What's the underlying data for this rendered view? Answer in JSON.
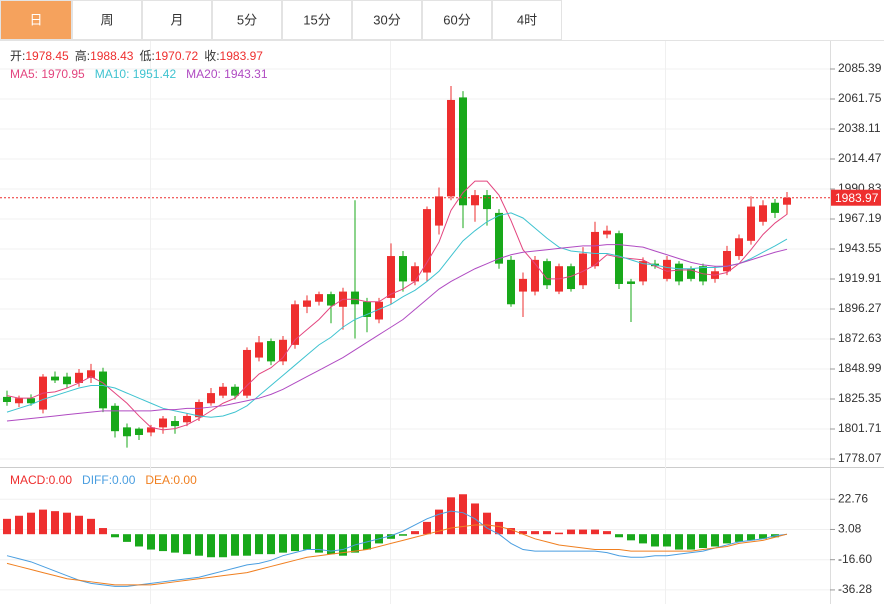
{
  "tabs": [
    "日",
    "周",
    "月",
    "5分",
    "15分",
    "30分",
    "60分",
    "4时"
  ],
  "active_tab": 0,
  "chart_data": [
    {
      "type": "candlestick",
      "ohlc_legend": [
        {
          "label": "开:",
          "value": 1978.45
        },
        {
          "label": "高:",
          "value": 1988.43
        },
        {
          "label": "低:",
          "value": 1970.72
        },
        {
          "label": "收:",
          "value": 1983.97
        }
      ],
      "ma_legend": [
        {
          "label": "MA5: ",
          "value": 1970.95,
          "color": "#e3457f"
        },
        {
          "label": "MA10: ",
          "value": 1951.42,
          "color": "#3fc3d0"
        },
        {
          "label": "MA20: ",
          "value": 1943.31,
          "color": "#b04bc2"
        }
      ],
      "up_color": "#ee2f2f",
      "down_color": "#18a81a",
      "open": [
        1827,
        1822,
        1826,
        1817,
        1843,
        1843,
        1838,
        1842,
        1847,
        1820,
        1803,
        1802,
        1799,
        1803,
        1808,
        1807,
        1811,
        1822,
        1828,
        1835,
        1828,
        1858,
        1871,
        1855,
        1868,
        1898,
        1902,
        1908,
        1898,
        1910,
        1902,
        1888,
        1905,
        1938,
        1918,
        1925,
        1962,
        1985,
        2063,
        1978,
        1986,
        1972,
        1935,
        1910,
        1910,
        1934,
        1910,
        1930,
        1915,
        1930,
        1955,
        1956,
        1918,
        1918,
        1932,
        1920,
        1932,
        1928,
        1930,
        1920,
        1926,
        1938,
        1950,
        1965,
        1980,
        1978.45
      ],
      "high": [
        1832,
        1828,
        1829,
        1845,
        1847,
        1846,
        1849,
        1853,
        1850,
        1822,
        1806,
        1803,
        1805,
        1812,
        1812,
        1814,
        1825,
        1834,
        1838,
        1837,
        1866,
        1875,
        1873,
        1875,
        1903,
        1907,
        1910,
        1910,
        1913,
        1982,
        1905,
        1905,
        1948,
        1942,
        1933,
        1977,
        1992,
        2072,
        2068,
        1990,
        1990,
        1975,
        1938,
        1925,
        1938,
        1936,
        1932,
        1932,
        1945,
        1965,
        1962,
        1958,
        1920,
        1937,
        1935,
        1938,
        1934,
        1930,
        1932,
        1930,
        1946,
        1955,
        1985,
        1982,
        1983,
        1988.43
      ],
      "low": [
        1820,
        1819,
        1820,
        1814,
        1838,
        1834,
        1835,
        1838,
        1815,
        1795,
        1787,
        1793,
        1796,
        1798,
        1798,
        1804,
        1808,
        1820,
        1826,
        1825,
        1826,
        1855,
        1852,
        1852,
        1865,
        1893,
        1899,
        1885,
        1880,
        1873,
        1878,
        1885,
        1900,
        1910,
        1915,
        1918,
        1955,
        1982,
        1960,
        1965,
        1962,
        1928,
        1898,
        1890,
        1907,
        1912,
        1908,
        1910,
        1912,
        1928,
        1952,
        1912,
        1886,
        1915,
        1928,
        1918,
        1915,
        1918,
        1915,
        1917,
        1923,
        1935,
        1947,
        1962,
        1968,
        1970.72
      ],
      "close": [
        1823,
        1826,
        1822,
        1843,
        1840,
        1837,
        1846,
        1848,
        1818,
        1800,
        1796,
        1797,
        1803,
        1810,
        1804,
        1812,
        1823,
        1830,
        1835,
        1828,
        1864,
        1870,
        1855,
        1872,
        1900,
        1903,
        1908,
        1899,
        1910,
        1900,
        1890,
        1902,
        1938,
        1918,
        1930,
        1975,
        1985,
        2061,
        1978,
        1986,
        1975,
        1932,
        1900,
        1920,
        1935,
        1915,
        1930,
        1912,
        1940,
        1957,
        1958,
        1916,
        1916,
        1934,
        1930,
        1935,
        1918,
        1920,
        1918,
        1926,
        1942,
        1952,
        1977,
        1978,
        1972,
        1983.97
      ],
      "series": [
        {
          "name": "MA5",
          "color": "#e3457f",
          "values": [
            1828,
            1826,
            1826,
            1830,
            1831,
            1834,
            1838,
            1843,
            1838,
            1830,
            1822,
            1812,
            1803,
            1801,
            1802,
            1805,
            1810,
            1816,
            1822,
            1826,
            1836,
            1845,
            1850,
            1858,
            1872,
            1880,
            1888,
            1898,
            1904,
            1904,
            1902,
            1902,
            1908,
            1912,
            1918,
            1933,
            1949,
            1974,
            1988,
            1997,
            1997,
            1986,
            1966,
            1943,
            1932,
            1920,
            1920,
            1922,
            1926,
            1931,
            1939,
            1937,
            1936,
            1935,
            1930,
            1926,
            1927,
            1927,
            1924,
            1923,
            1925,
            1932,
            1943,
            1955,
            1964,
            1970.95
          ]
        },
        {
          "name": "MA10",
          "color": "#3fc3d0",
          "values": [
            1815,
            1818,
            1821,
            1825,
            1828,
            1831,
            1834,
            1836,
            1836,
            1834,
            1830,
            1826,
            1822,
            1818,
            1816,
            1814,
            1812,
            1811,
            1812,
            1815,
            1820,
            1828,
            1836,
            1844,
            1852,
            1860,
            1868,
            1874,
            1882,
            1888,
            1892,
            1896,
            1900,
            1906,
            1911,
            1918,
            1926,
            1938,
            1950,
            1958,
            1965,
            1970,
            1972,
            1968,
            1960,
            1952,
            1945,
            1942,
            1941,
            1940,
            1940,
            1938,
            1935,
            1932,
            1931,
            1929,
            1928,
            1928,
            1929,
            1929,
            1930,
            1932,
            1936,
            1941,
            1946,
            1951.42
          ]
        },
        {
          "name": "MA20",
          "color": "#b04bc2",
          "values": [
            1808,
            1809,
            1810,
            1811,
            1812,
            1813,
            1814,
            1815,
            1816,
            1816,
            1816,
            1816,
            1816,
            1817,
            1817,
            1818,
            1818,
            1819,
            1820,
            1822,
            1824,
            1826,
            1829,
            1833,
            1838,
            1843,
            1848,
            1853,
            1858,
            1864,
            1870,
            1876,
            1882,
            1888,
            1896,
            1904,
            1912,
            1918,
            1923,
            1928,
            1932,
            1936,
            1939,
            1941,
            1942,
            1943,
            1944,
            1945,
            1946,
            1946,
            1947,
            1947,
            1946,
            1945,
            1942,
            1939,
            1936,
            1933,
            1931,
            1930,
            1930,
            1932,
            1935,
            1938,
            1941,
            1943.31
          ]
        }
      ],
      "last_price": 1983.97,
      "last_price_color": "#ee2f2f",
      "ylim": [
        1771.77,
        2106.67
      ],
      "yticks": [
        2085.39,
        2061.75,
        2038.11,
        2014.47,
        1990.83,
        1967.19,
        1943.55,
        1919.91,
        1896.27,
        1872.63,
        1848.99,
        1825.35,
        1801.71,
        1778.07
      ]
    },
    {
      "type": "macd",
      "legend": [
        {
          "label": "MACD:",
          "text": "0.00",
          "color": "#ee2f2f"
        },
        {
          "label": "DIFF:",
          "text": "0.00",
          "color": "#4a9ee0"
        },
        {
          "label": "DEA:",
          "text": "0.00",
          "color": "#f07f20"
        }
      ],
      "up_color": "#ee2f2f",
      "down_color": "#18a81a",
      "values": [
        10,
        12,
        14,
        16,
        15,
        14,
        12,
        10,
        4,
        -2,
        -5,
        -8,
        -10,
        -11,
        -12,
        -13,
        -14,
        -15,
        -15,
        -14,
        -14,
        -13,
        -13,
        -12,
        -11,
        -10,
        -12,
        -13,
        -14,
        -12,
        -10,
        -6,
        -3,
        -1,
        2,
        8,
        16,
        24,
        26,
        20,
        14,
        8,
        4,
        2,
        2,
        2,
        1,
        3,
        3,
        3,
        2,
        -2,
        -4,
        -6,
        -8,
        -8,
        -10,
        -10,
        -9,
        -8,
        -6,
        -5,
        -4,
        -3,
        -2,
        0
      ],
      "series": [
        {
          "name": "DIFF",
          "color": "#4a9ee0",
          "values": [
            -14,
            -16,
            -18,
            -21,
            -24,
            -27,
            -30,
            -32,
            -33,
            -34,
            -34,
            -33,
            -32,
            -31,
            -30,
            -29,
            -28,
            -26,
            -24,
            -22,
            -20,
            -19,
            -17,
            -14,
            -12,
            -10,
            -10,
            -11,
            -10,
            -7,
            -5,
            -3,
            -1,
            2,
            6,
            10,
            13,
            15,
            14,
            10,
            4,
            0,
            -6,
            -10,
            -11,
            -11,
            -11,
            -11,
            -11,
            -11,
            -12,
            -14,
            -15,
            -15,
            -14,
            -14,
            -13,
            -12,
            -11,
            -9,
            -7,
            -5,
            -4,
            -3,
            -1,
            0
          ]
        },
        {
          "name": "DEA",
          "color": "#f07f20",
          "values": [
            -19,
            -21,
            -23,
            -25,
            -27,
            -29,
            -30,
            -31,
            -32,
            -33,
            -33,
            -33,
            -33,
            -32,
            -31,
            -30,
            -29,
            -28,
            -27,
            -26,
            -25,
            -23,
            -21,
            -19,
            -17,
            -15,
            -14,
            -13,
            -12,
            -11,
            -10,
            -8,
            -6,
            -4,
            -2,
            0,
            2,
            4,
            5,
            6,
            6,
            5,
            3,
            0,
            -3,
            -5,
            -7,
            -8,
            -9,
            -10,
            -10,
            -10,
            -11,
            -11,
            -11,
            -11,
            -11,
            -11,
            -10,
            -9,
            -8,
            -6,
            -5,
            -4,
            -2,
            0
          ]
        }
      ],
      "ylim": [
        -42.84,
        41.79
      ],
      "yticks": [
        22.76,
        3.08,
        {
          "value": -16.6,
          "label": "-16.60"
        },
        -36.28
      ]
    }
  ]
}
